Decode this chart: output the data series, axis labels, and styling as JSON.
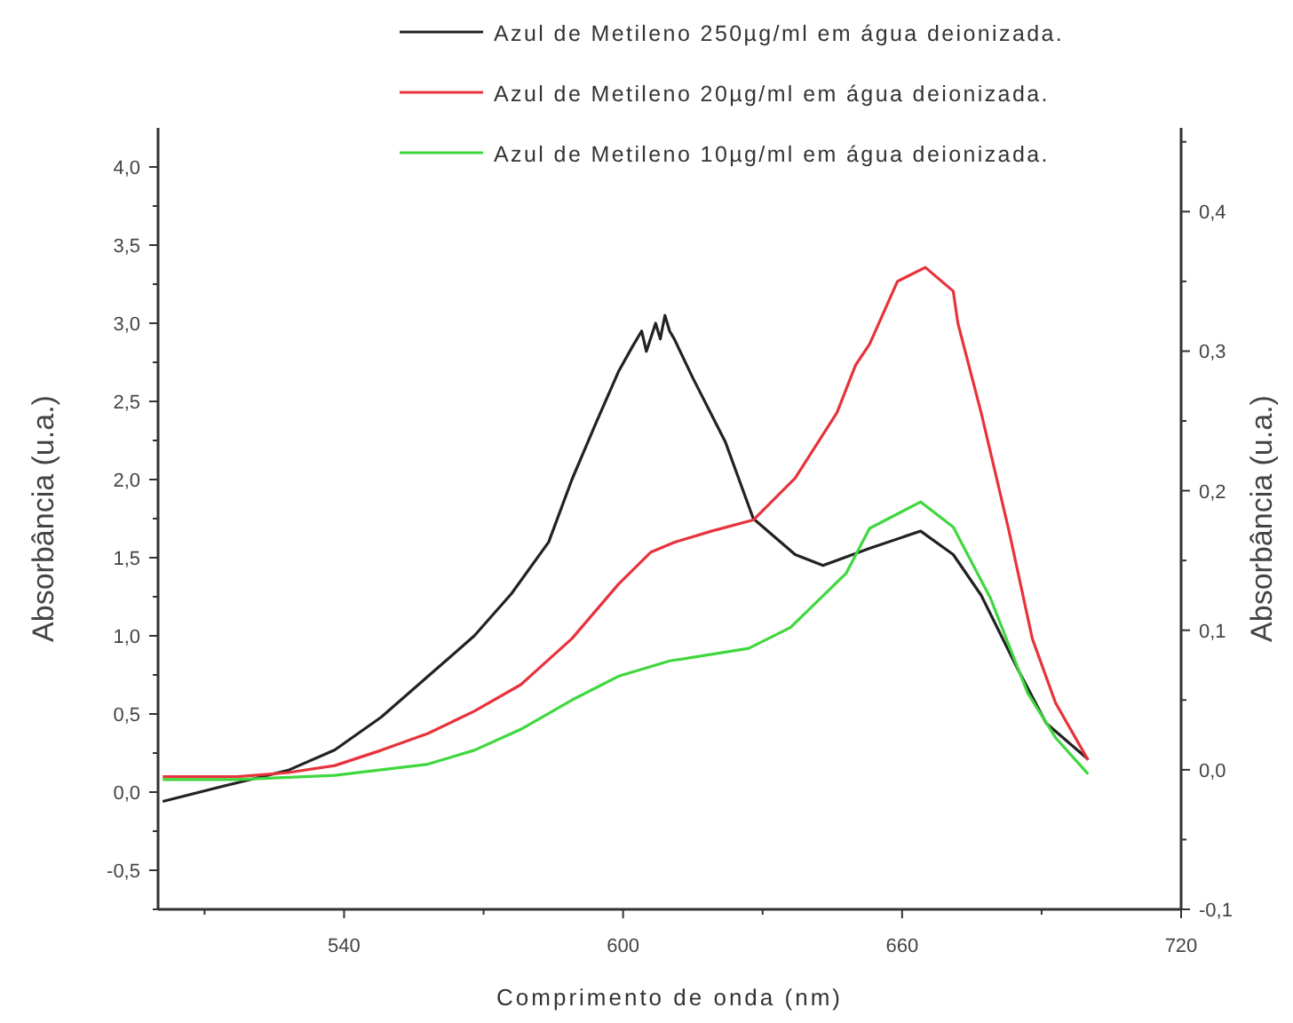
{
  "chart_data": {
    "type": "line",
    "xlabel": "Comprimento de onda (nm)",
    "ylabel": "Absorbância (u.a.)",
    "y2label": "Absorbância (u.a.)",
    "legend": "top",
    "grid": false,
    "line_style": "solid",
    "marker": "none",
    "xlim": [
      500,
      720
    ],
    "xticks": [
      {
        "value": 510,
        "label": null
      },
      540,
      {
        "value": 570,
        "label": null
      },
      600,
      {
        "value": 630,
        "label": null
      },
      660,
      {
        "value": 690,
        "label": null
      },
      720
    ],
    "ylim": [
      -0.75,
      4.25
    ],
    "yticks": [
      {
        "value": -0.75,
        "label": null
      },
      {
        "value": -0.5,
        "label": "-0,5"
      },
      {
        "value": -0.25,
        "label": null
      },
      {
        "value": 0,
        "label": "0,0"
      },
      {
        "value": 0.25,
        "label": null
      },
      {
        "value": 0.5,
        "label": "0,5"
      },
      {
        "value": 0.75,
        "label": null
      },
      {
        "value": 1,
        "label": "1,0"
      },
      {
        "value": 1.25,
        "label": null
      },
      {
        "value": 1.5,
        "label": "1,5"
      },
      {
        "value": 1.75,
        "label": null
      },
      {
        "value": 2,
        "label": "2,0"
      },
      {
        "value": 2.25,
        "label": null
      },
      {
        "value": 2.5,
        "label": "2,5"
      },
      {
        "value": 2.75,
        "label": null
      },
      {
        "value": 3,
        "label": "3,0"
      },
      {
        "value": 3.25,
        "label": null
      },
      {
        "value": 3.5,
        "label": "3,5"
      },
      {
        "value": 3.75,
        "label": null
      },
      {
        "value": 4,
        "label": "4,0"
      }
    ],
    "y2lim": [
      -0.1,
      0.46
    ],
    "y2ticks": [
      {
        "value": -0.1,
        "label": "-0,1"
      },
      {
        "value": -0.05,
        "label": null
      },
      {
        "value": 0,
        "label": "0,0"
      },
      {
        "value": 0.05,
        "label": null
      },
      {
        "value": 0.1,
        "label": "0,1"
      },
      {
        "value": 0.15,
        "label": null
      },
      {
        "value": 0.2,
        "label": "0,2"
      },
      {
        "value": 0.25,
        "label": null
      },
      {
        "value": 0.3,
        "label": "0,3"
      },
      {
        "value": 0.35,
        "label": null
      },
      {
        "value": 0.4,
        "label": "0,4"
      },
      {
        "value": 0.45,
        "label": null
      }
    ],
    "series": [
      {
        "name": "Azul de Metileno 250µg/ml em água deionizada.",
        "color": "#222222",
        "x": [
          501,
          517,
          528,
          538,
          548,
          558,
          568,
          576,
          584,
          589,
          594,
          599,
          602,
          604,
          605,
          607,
          608,
          609,
          610,
          611,
          615,
          622,
          628,
          637,
          643,
          653,
          664,
          671,
          677,
          685,
          691,
          700
        ],
        "values": [
          -0.06,
          0.06,
          0.14,
          0.27,
          0.48,
          0.74,
          1.0,
          1.27,
          1.6,
          2.0,
          2.35,
          2.69,
          2.85,
          2.95,
          2.82,
          3.0,
          2.9,
          3.05,
          2.95,
          2.9,
          2.65,
          2.24,
          1.75,
          1.52,
          1.45,
          1.56,
          1.67,
          1.52,
          1.26,
          0.78,
          0.44,
          0.21
        ]
      },
      {
        "name": "Azul de Metileno 20µg/ml em água deionizada.",
        "color": "#e8323c",
        "axis": "y2",
        "x": [
          501,
          517,
          528,
          538,
          548,
          558,
          568,
          578,
          589,
          599,
          606,
          611,
          619,
          628,
          637,
          646,
          650,
          653,
          659,
          665,
          671,
          672,
          677,
          683,
          688,
          693,
          700
        ],
        "values": [
          -0.005,
          -0.005,
          -0.002,
          0.003,
          0.014,
          0.026,
          0.042,
          0.061,
          0.094,
          0.133,
          0.156,
          0.163,
          0.171,
          0.179,
          0.209,
          0.256,
          0.29,
          0.305,
          0.35,
          0.36,
          0.343,
          0.32,
          0.256,
          0.171,
          0.094,
          0.048,
          0.007
        ]
      },
      {
        "name": "Azul de Metileno 10µg/ml em água deionizada.",
        "color": "#3ed83e",
        "axis": "y2",
        "x": [
          501,
          517,
          538,
          558,
          568,
          578,
          589,
          599,
          610,
          627,
          636,
          648,
          653,
          664,
          671,
          679,
          687,
          693,
          700
        ],
        "values": [
          -0.007,
          -0.007,
          -0.004,
          0.004,
          0.014,
          0.029,
          0.05,
          0.067,
          0.078,
          0.087,
          0.102,
          0.141,
          0.173,
          0.192,
          0.174,
          0.123,
          0.055,
          0.023,
          -0.003
        ]
      }
    ]
  }
}
